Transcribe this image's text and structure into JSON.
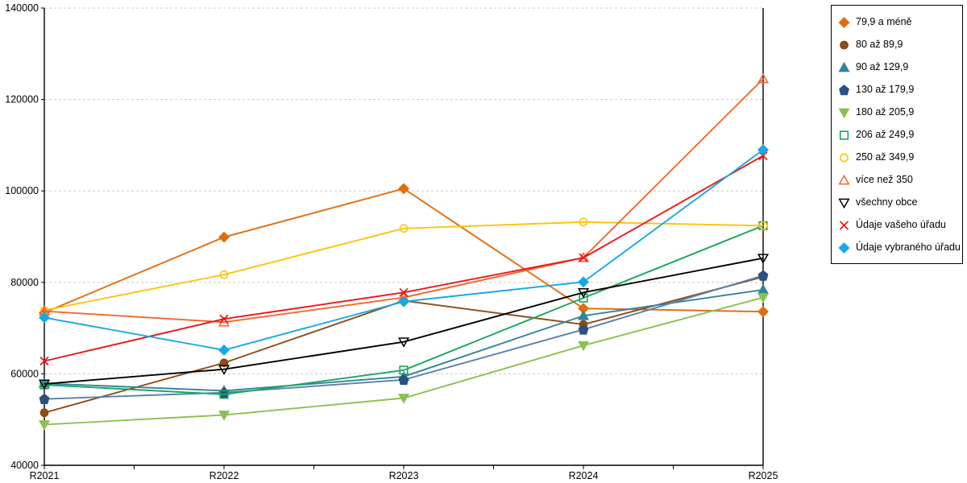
{
  "chart_data": {
    "type": "line",
    "title": "",
    "categories": [
      "R2021",
      "R2022",
      "R2023",
      "R2024",
      "R2025"
    ],
    "ylim": [
      40000,
      140000
    ],
    "ytick_step": 20000,
    "ytick_labels": [
      "40000",
      "60000",
      "80000",
      "100000",
      "120000",
      "140000"
    ],
    "grid": "horizontal-dashed",
    "legend_position": "right",
    "axis_color": "#000000",
    "grid_color": "#c8c8c8",
    "series": [
      {
        "name": "79,9 a méně",
        "marker": "diamond",
        "marker_fill": "filled",
        "color": "#E46C0A",
        "values": [
          73400,
          89900,
          100500,
          74300,
          73600
        ]
      },
      {
        "name": "80 až 89,9",
        "marker": "circle",
        "marker_fill": "filled",
        "color": "#8E4B14",
        "values": [
          51500,
          62400,
          76000,
          70800,
          81200
        ]
      },
      {
        "name": "90 až 129,9",
        "marker": "triangle-up",
        "marker_fill": "filled",
        "color": "#31849B",
        "values": [
          57900,
          56300,
          59400,
          72700,
          78400
        ]
      },
      {
        "name": "130 až 179,9",
        "marker": "pentagon",
        "marker_fill": "filled",
        "color": "#5B7FAD",
        "marker_color": "#2A5183",
        "values": [
          54500,
          55900,
          58700,
          69700,
          81500
        ]
      },
      {
        "name": "180 až 205,9",
        "marker": "triangle-down",
        "marker_fill": "filled",
        "color": "#8CC152",
        "values": [
          48900,
          51000,
          54700,
          66200,
          76700
        ]
      },
      {
        "name": "206 až 249,9",
        "marker": "square",
        "marker_fill": "open",
        "color": "#18A75C",
        "values": [
          57600,
          55500,
          60800,
          76600,
          92400
        ]
      },
      {
        "name": "250 až 349,9",
        "marker": "circle",
        "marker_fill": "open",
        "color": "#FFC20E",
        "values": [
          73900,
          81700,
          91800,
          93200,
          92400
        ]
      },
      {
        "name": "více než 350",
        "marker": "triangle-up",
        "marker_fill": "open",
        "color": "#F2662B",
        "values": [
          73700,
          71300,
          76700,
          85400,
          124500
        ]
      },
      {
        "name": "všechny obce",
        "marker": "triangle-down",
        "marker_fill": "open",
        "color": "#000000",
        "values": [
          57800,
          61000,
          67000,
          77800,
          85300
        ]
      },
      {
        "name": "Údaje vašeho úřadu",
        "marker": "x",
        "marker_fill": "open",
        "color": "#F01414",
        "values": [
          62800,
          72000,
          77800,
          85400,
          107700
        ]
      },
      {
        "name": "Údaje vybraného úřadu",
        "marker": "diamond",
        "marker_fill": "filled",
        "color": "#16A9E4",
        "values": [
          72300,
          65200,
          75800,
          80100,
          109000
        ]
      }
    ]
  }
}
